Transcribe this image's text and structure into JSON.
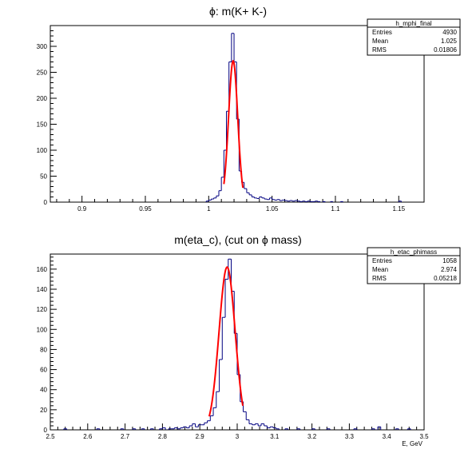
{
  "chart_data": [
    {
      "type": "histogram",
      "title": "ϕ: m(K+ K-)",
      "xlabel": "",
      "ylabel": "",
      "xlim": [
        0.875,
        1.17
      ],
      "ylim": [
        0,
        340
      ],
      "xticks": [
        "0.9",
        "0.95",
        "1",
        "1.05",
        "1.1",
        "1.15"
      ],
      "yticks": [
        "0",
        "50",
        "100",
        "150",
        "200",
        "250",
        "300"
      ],
      "stats": {
        "name": "h_mphi_final",
        "rows": [
          {
            "label": "Entries",
            "value": "4930"
          },
          {
            "label": "Mean",
            "value": "1.025"
          },
          {
            "label": "RMS",
            "value": "0.01806"
          }
        ]
      },
      "bin_width": 0.002,
      "bins": [
        {
          "x": 0.998,
          "y": 2
        },
        {
          "x": 1.0,
          "y": 4
        },
        {
          "x": 1.002,
          "y": 6
        },
        {
          "x": 1.004,
          "y": 8
        },
        {
          "x": 1.006,
          "y": 12
        },
        {
          "x": 1.008,
          "y": 22
        },
        {
          "x": 1.01,
          "y": 48
        },
        {
          "x": 1.012,
          "y": 100
        },
        {
          "x": 1.014,
          "y": 175
        },
        {
          "x": 1.016,
          "y": 270
        },
        {
          "x": 1.018,
          "y": 325
        },
        {
          "x": 1.02,
          "y": 270
        },
        {
          "x": 1.022,
          "y": 160
        },
        {
          "x": 1.024,
          "y": 60
        },
        {
          "x": 1.026,
          "y": 38
        },
        {
          "x": 1.028,
          "y": 26
        },
        {
          "x": 1.03,
          "y": 18
        },
        {
          "x": 1.032,
          "y": 14
        },
        {
          "x": 1.034,
          "y": 10
        },
        {
          "x": 1.036,
          "y": 8
        },
        {
          "x": 1.038,
          "y": 7
        },
        {
          "x": 1.04,
          "y": 10
        },
        {
          "x": 1.042,
          "y": 8
        },
        {
          "x": 1.044,
          "y": 6
        },
        {
          "x": 1.046,
          "y": 5
        },
        {
          "x": 1.048,
          "y": 8
        },
        {
          "x": 1.05,
          "y": 5
        },
        {
          "x": 1.052,
          "y": 4
        },
        {
          "x": 1.054,
          "y": 5
        },
        {
          "x": 1.056,
          "y": 3
        },
        {
          "x": 1.058,
          "y": 4
        },
        {
          "x": 1.06,
          "y": 3
        },
        {
          "x": 1.062,
          "y": 2
        },
        {
          "x": 1.064,
          "y": 3
        },
        {
          "x": 1.066,
          "y": 2
        },
        {
          "x": 1.068,
          "y": 3
        },
        {
          "x": 1.07,
          "y": 2
        },
        {
          "x": 1.072,
          "y": 1
        },
        {
          "x": 1.074,
          "y": 2
        },
        {
          "x": 1.076,
          "y": 1
        },
        {
          "x": 1.078,
          "y": 2
        },
        {
          "x": 1.08,
          "y": 1
        },
        {
          "x": 1.082,
          "y": 1
        },
        {
          "x": 1.084,
          "y": 2
        },
        {
          "x": 1.086,
          "y": 1
        },
        {
          "x": 1.09,
          "y": 1
        },
        {
          "x": 1.096,
          "y": 1
        },
        {
          "x": 1.104,
          "y": 1
        },
        {
          "x": 1.15,
          "y": 2
        }
      ],
      "fit": {
        "type": "gaussian",
        "mean": 1.0193,
        "sigma": 0.0036,
        "amplitude": 272,
        "range": [
          1.012,
          1.027
        ]
      }
    },
    {
      "type": "histogram",
      "title": "m(eta_c), (cut on ϕ mass)",
      "xlabel": "E, GeV",
      "ylabel": "",
      "xlim": [
        2.5,
        3.5
      ],
      "ylim": [
        0,
        175
      ],
      "xticks": [
        "2.5",
        "2.6",
        "2.7",
        "2.8",
        "2.9",
        "3",
        "3.1",
        "3.2",
        "3.3",
        "3.4",
        "3.5"
      ],
      "yticks": [
        "0",
        "20",
        "40",
        "60",
        "80",
        "100",
        "120",
        "140",
        "160"
      ],
      "stats": {
        "name": "h_etac_phimass",
        "rows": [
          {
            "label": "Entries",
            "value": "1058"
          },
          {
            "label": "Mean",
            "value": "2.974"
          },
          {
            "label": "RMS",
            "value": "0.05218"
          }
        ]
      },
      "bin_width": 0.008,
      "bins": [
        {
          "x": 2.532,
          "y": 1
        },
        {
          "x": 2.62,
          "y": 1
        },
        {
          "x": 2.684,
          "y": 1
        },
        {
          "x": 2.716,
          "y": 1
        },
        {
          "x": 2.74,
          "y": 1
        },
        {
          "x": 2.772,
          "y": 1
        },
        {
          "x": 2.796,
          "y": 1
        },
        {
          "x": 2.804,
          "y": 2
        },
        {
          "x": 2.812,
          "y": 1
        },
        {
          "x": 2.82,
          "y": 1
        },
        {
          "x": 2.828,
          "y": 2
        },
        {
          "x": 2.836,
          "y": 1
        },
        {
          "x": 2.844,
          "y": 2
        },
        {
          "x": 2.852,
          "y": 3
        },
        {
          "x": 2.86,
          "y": 2
        },
        {
          "x": 2.868,
          "y": 4
        },
        {
          "x": 2.876,
          "y": 6
        },
        {
          "x": 2.884,
          "y": 3
        },
        {
          "x": 2.892,
          "y": 5
        },
        {
          "x": 2.9,
          "y": 5
        },
        {
          "x": 2.908,
          "y": 7
        },
        {
          "x": 2.916,
          "y": 9
        },
        {
          "x": 2.924,
          "y": 14
        },
        {
          "x": 2.932,
          "y": 22
        },
        {
          "x": 2.94,
          "y": 38
        },
        {
          "x": 2.948,
          "y": 70
        },
        {
          "x": 2.956,
          "y": 112
        },
        {
          "x": 2.964,
          "y": 150
        },
        {
          "x": 2.972,
          "y": 170
        },
        {
          "x": 2.98,
          "y": 138
        },
        {
          "x": 2.988,
          "y": 96
        },
        {
          "x": 2.996,
          "y": 55
        },
        {
          "x": 3.004,
          "y": 28
        },
        {
          "x": 3.012,
          "y": 18
        },
        {
          "x": 3.02,
          "y": 10
        },
        {
          "x": 3.028,
          "y": 6
        },
        {
          "x": 3.036,
          "y": 5
        },
        {
          "x": 3.044,
          "y": 6
        },
        {
          "x": 3.052,
          "y": 4
        },
        {
          "x": 3.06,
          "y": 6
        },
        {
          "x": 3.068,
          "y": 4
        },
        {
          "x": 3.076,
          "y": 2
        },
        {
          "x": 3.084,
          "y": 3
        },
        {
          "x": 3.092,
          "y": 2
        },
        {
          "x": 3.1,
          "y": 1
        },
        {
          "x": 3.124,
          "y": 1
        },
        {
          "x": 3.156,
          "y": 1
        },
        {
          "x": 3.196,
          "y": 1
        },
        {
          "x": 3.236,
          "y": 1
        },
        {
          "x": 3.316,
          "y": 1
        },
        {
          "x": 3.356,
          "y": 1
        },
        {
          "x": 3.372,
          "y": 3
        },
        {
          "x": 3.42,
          "y": 1
        },
        {
          "x": 3.452,
          "y": 1
        }
      ],
      "fit": {
        "type": "gaussian",
        "mean": 2.973,
        "sigma": 0.0215,
        "amplitude": 162,
        "range": [
          2.925,
          3.015
        ]
      }
    }
  ]
}
